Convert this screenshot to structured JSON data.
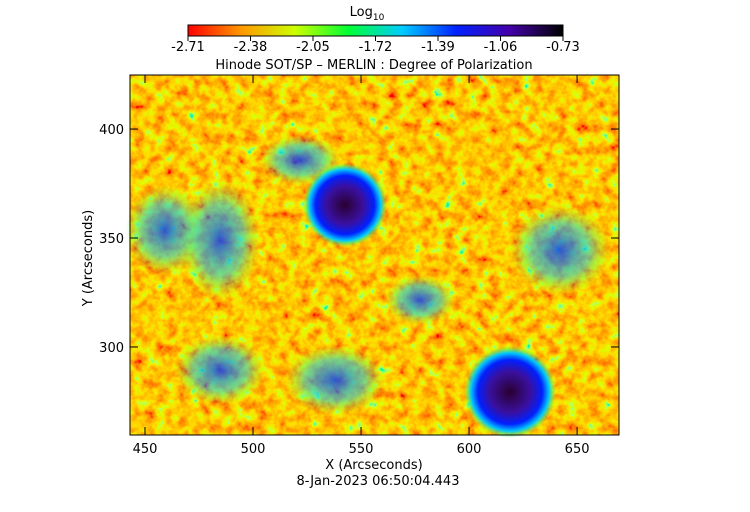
{
  "chart_data": {
    "type": "image",
    "title": "Hinode SOT/SP – MERLIN : Degree of Polarization",
    "colorbar_title": "Log",
    "colorbar_title_subscript": "10",
    "colorbar_ticks": [
      -2.71,
      -2.38,
      -2.05,
      -1.72,
      -1.39,
      -1.06,
      -0.73
    ],
    "clim": [
      -2.71,
      -0.73
    ],
    "colormap": [
      "#ff0000",
      "#ff9900",
      "#ccff00",
      "#00ff33",
      "#00ccff",
      "#0022ff",
      "#4400aa",
      "#000000"
    ],
    "x_label": "X (Arcseconds)",
    "y_label": "Y (Arcseconds)",
    "xlim": [
      443.06,
      669.4
    ],
    "xticks": [
      450,
      500,
      550,
      600,
      650
    ],
    "ylim": [
      259.6,
      424.8
    ],
    "yticks": [
      300,
      350,
      400
    ],
    "footer": "8-Jan-2023 06:50:04.443"
  }
}
